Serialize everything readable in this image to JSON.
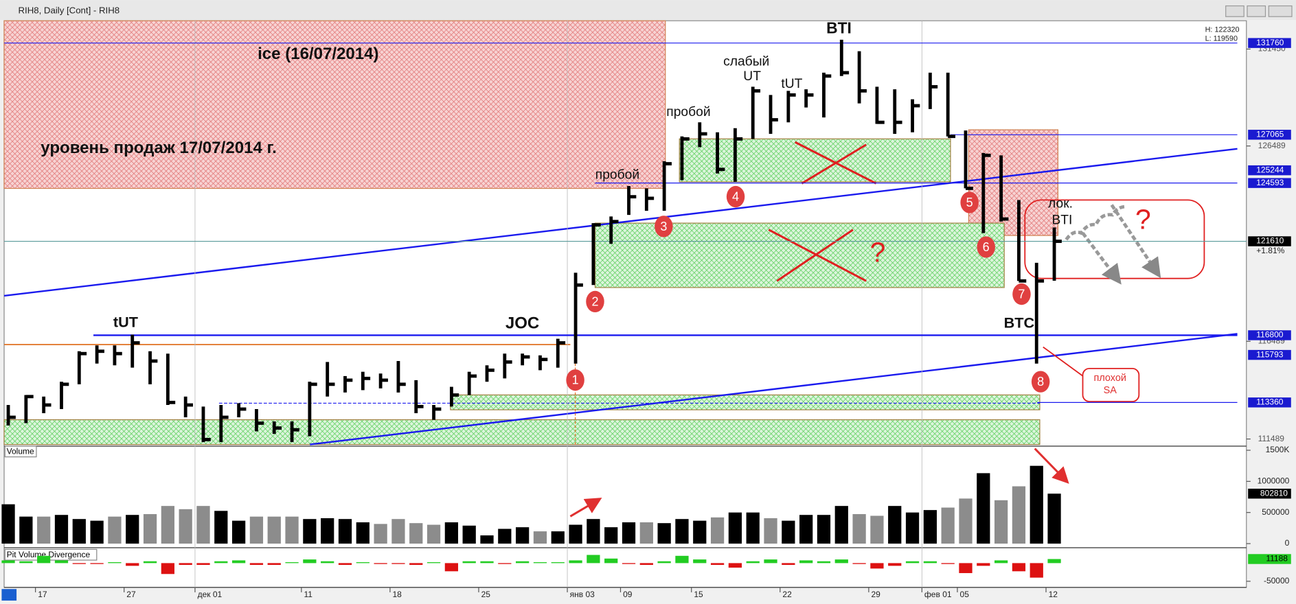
{
  "window": {
    "title": "RIH8, Daily [Cont] - RIH8",
    "high": "H: 122320",
    "low": "L: 119590"
  },
  "chart_data": [
    {
      "type": "ohlc",
      "color": "#000000",
      "categories": [
        null,
        null,
        "17",
        null,
        null,
        null,
        null,
        "27",
        null,
        null,
        null,
        "дек 01",
        null,
        null,
        null,
        null,
        null,
        "11",
        null,
        null,
        null,
        null,
        "18",
        null,
        null,
        null,
        null,
        "25",
        null,
        null,
        null,
        null,
        "янв 03",
        null,
        null,
        "09",
        null,
        null,
        null,
        "15",
        null,
        null,
        null,
        null,
        "22",
        null,
        null,
        null,
        null,
        "29",
        null,
        null,
        "фев 01",
        null,
        "05",
        null,
        null,
        null,
        null,
        "12"
      ],
      "high": [
        113230,
        113740,
        113660,
        114420,
        115980,
        116280,
        116280,
        116830,
        115980,
        115860,
        113660,
        113150,
        113230,
        113320,
        113020,
        112390,
        112390,
        114420,
        115430,
        114710,
        114930,
        114840,
        115480,
        114500,
        113230,
        114160,
        114930,
        115260,
        115860,
        115860,
        115770,
        116620,
        120000,
        122540,
        122880,
        124440,
        124320,
        125710,
        126980,
        127700,
        127190,
        127400,
        129520,
        129100,
        129310,
        129390,
        130240,
        131930,
        131340,
        129520,
        129390,
        128880,
        130240,
        130240,
        127280,
        126130,
        126010,
        123720,
        120510,
        122320
      ],
      "low": [
        112180,
        112300,
        112810,
        113020,
        114290,
        115350,
        115260,
        115140,
        114290,
        113230,
        112600,
        111330,
        111330,
        112600,
        111880,
        111750,
        111330,
        111630,
        113660,
        113870,
        113990,
        114080,
        113870,
        112810,
        112470,
        113150,
        113740,
        114420,
        114590,
        115260,
        115010,
        115140,
        115350,
        119370,
        121480,
        122960,
        123170,
        123170,
        124740,
        126430,
        125080,
        124650,
        126850,
        127110,
        127700,
        128460,
        127950,
        130070,
        128670,
        127620,
        127110,
        127190,
        128380,
        126980,
        124320,
        122030,
        122620,
        119580,
        115350,
        119590
      ],
      "close": [
        112600,
        113660,
        113230,
        114290,
        115860,
        115980,
        115860,
        116410,
        115480,
        113360,
        113230,
        111460,
        112600,
        113020,
        112300,
        112050,
        111960,
        114290,
        114290,
        114500,
        114590,
        114500,
        114290,
        113150,
        113020,
        113740,
        114710,
        115010,
        115430,
        115690,
        115560,
        116410,
        119370,
        122450,
        122620,
        123890,
        123810,
        125580,
        126850,
        127110,
        125290,
        126850,
        129310,
        127830,
        129100,
        129100,
        130070,
        130240,
        129310,
        127700,
        127700,
        128550,
        129520,
        126980,
        124320,
        126010,
        122750,
        119580,
        119580,
        121610
      ],
      "ylim": [
        111250,
        132900
      ],
      "yticks": [
        131450,
        126489,
        116489,
        111489
      ],
      "levels": [
        131760,
        127065,
        125244,
        124593,
        121610,
        116800,
        115793,
        113360
      ],
      "change": "+1.81%",
      "annotations": [
        "ice (16/07/2014)",
        "уровень продаж 17/07/2014 г.",
        "пробой",
        "пробой",
        "слабый",
        "UT",
        "tUT",
        "BTI",
        "tUT",
        "JOC",
        "BTC",
        "лок.",
        "BTI",
        "?",
        "?",
        "плохой",
        "SA"
      ],
      "points": [
        "1",
        "2",
        "3",
        "4",
        "5",
        "6",
        "7",
        "8"
      ]
    },
    {
      "type": "bar",
      "title": "Volume",
      "values": [
        632000,
        434000,
        434000,
        461000,
        395000,
        368000,
        434000,
        461000,
        474000,
        605000,
        553000,
        605000,
        526000,
        368000,
        434000,
        434000,
        434000,
        395000,
        408000,
        395000,
        342000,
        316000,
        395000,
        329000,
        303000,
        342000,
        289000,
        132000,
        237000,
        263000,
        197000,
        197000,
        303000,
        395000,
        263000,
        342000,
        342000,
        329000,
        395000,
        368000,
        421000,
        500000,
        500000,
        408000,
        368000,
        461000,
        461000,
        605000,
        474000,
        447000,
        605000,
        500000,
        539000,
        579000,
        724000,
        1132000,
        697000,
        921000,
        1250000,
        802810
      ],
      "colors": {
        "up": "#000000",
        "down": "#8c8c8c"
      },
      "ylim": [
        0,
        1500000
      ],
      "yticks": [
        0,
        500000,
        1000000,
        {
          "value": 1500000,
          "label": "1500K"
        }
      ]
    },
    {
      "type": "bar",
      "title": "Pit Volume Divergence",
      "values": [
        7500,
        5000,
        20000,
        7500,
        -2500,
        -2500,
        2500,
        -7500,
        5000,
        -30000,
        -5000,
        -5000,
        5000,
        7500,
        -5000,
        -5000,
        2500,
        10000,
        5000,
        -5000,
        2500,
        -2500,
        -2500,
        -5000,
        2500,
        -22500,
        5000,
        5000,
        -2500,
        5000,
        2500,
        2500,
        7500,
        22500,
        12500,
        -2500,
        -5000,
        5000,
        20000,
        10000,
        -5000,
        -12500,
        5000,
        10000,
        -5000,
        7500,
        5000,
        10000,
        -2500,
        -15000,
        -7500,
        5000,
        5000,
        -2500,
        -27500,
        -7500,
        7500,
        -22500,
        -40000,
        11188
      ],
      "colors": {
        "up": "#22cc22",
        "down": "#dd1111"
      },
      "ylim": [
        -60000,
        40000
      ],
      "yticks": [
        -50000
      ]
    }
  ]
}
